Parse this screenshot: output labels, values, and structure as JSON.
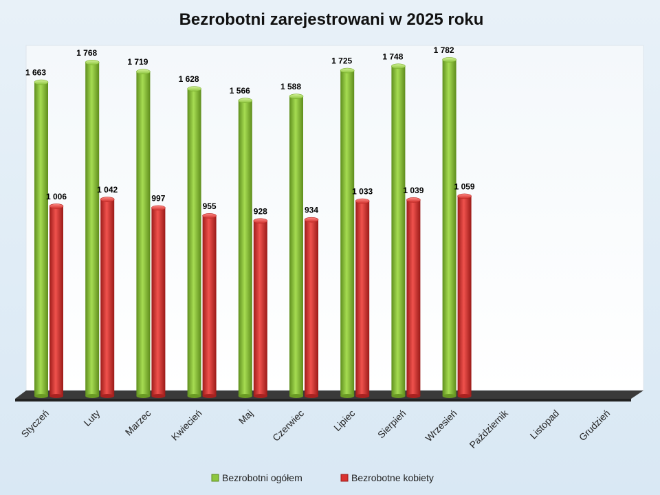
{
  "chart_data": {
    "type": "bar",
    "title": "Bezrobotni zarejestrowani w 2025 roku",
    "categories": [
      "Styczeń",
      "Luty",
      "Marzec",
      "Kwiecień",
      "Maj",
      "Czerwiec",
      "Lipiec",
      "Sierpień",
      "Wrzesień",
      "Październik",
      "Listopad",
      "Grudzień"
    ],
    "series": [
      {
        "name": "Bezrobotni ogółem",
        "color": "#8dc63f",
        "values": [
          1663,
          1768,
          1719,
          1628,
          1566,
          1588,
          1725,
          1748,
          1782,
          null,
          null,
          null
        ],
        "labels": [
          "1 663",
          "1 768",
          "1 719",
          "1 628",
          "1 566",
          "1 588",
          "1 725",
          "1 748",
          "1 782",
          "",
          "",
          ""
        ]
      },
      {
        "name": "Bezrobotne kobiety",
        "color": "#d9322f",
        "values": [
          1006,
          1042,
          997,
          955,
          928,
          934,
          1033,
          1039,
          1059,
          null,
          null,
          null
        ],
        "labels": [
          "1 006",
          "1 042",
          "997",
          "955",
          "928",
          "934",
          "1 033",
          "1 039",
          "1 059",
          "",
          "",
          ""
        ]
      }
    ],
    "ylim": [
      0,
      1800
    ],
    "legend": "bottom",
    "grid": false
  }
}
